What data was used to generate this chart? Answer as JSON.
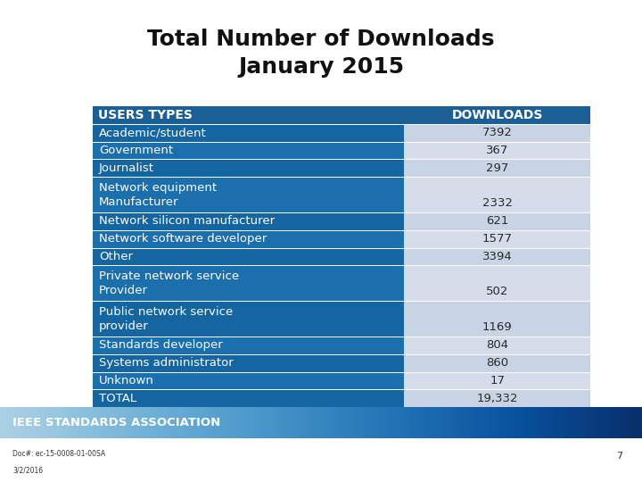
{
  "title": "Total Number of Downloads\nJanuary 2015",
  "header": [
    "USERS TYPES",
    "DOWNLOADS"
  ],
  "rows": [
    [
      "Academic/student",
      "7392"
    ],
    [
      "Government",
      "367"
    ],
    [
      "Journalist",
      "297"
    ],
    [
      "Network equipment\nManufacturer",
      "2332"
    ],
    [
      "Network silicon manufacturer",
      "621"
    ],
    [
      "Network software developer",
      "1577"
    ],
    [
      "Other",
      "3394"
    ],
    [
      "Private network service\nProvider",
      "502"
    ],
    [
      "Public network service\nprovider",
      "1169"
    ],
    [
      "Standards developer",
      "804"
    ],
    [
      "Systems administrator",
      "860"
    ],
    [
      "Unknown",
      "17"
    ],
    [
      "TOTAL",
      "19,332"
    ]
  ],
  "row_colors_left": [
    "#1565a0",
    "#1c6fad",
    "#1565a0",
    "#1c6fad",
    "#1565a0",
    "#1c6fad",
    "#1565a0",
    "#1c6fad",
    "#1565a0",
    "#1c6fad",
    "#1565a0",
    "#1c6fad",
    "#1565a0"
  ],
  "row_colors_right": [
    "#c8d4e3",
    "#d4dde9",
    "#c8d4e3",
    "#d4dde9",
    "#c8d4e3",
    "#d4dde9",
    "#c8d4e3",
    "#d4dde9",
    "#c8d4e3",
    "#d4dde9",
    "#c8d4e3",
    "#d4dde9",
    "#c8d4e3"
  ],
  "header_bg": "#1a5f96",
  "bg_color": "#ffffff",
  "footer_bar_left": "#0e82c8",
  "footer_bar_right": "#4ab3e8",
  "footer_text": "IEEE STANDARDS ASSOCIATION",
  "footer_doc": "Doc#: ec-15-0008-01-00SA",
  "footer_date": "3/2/2016",
  "footer_page": "7",
  "title_fontsize": 18,
  "table_fontsize": 9.5,
  "header_fontsize": 10
}
